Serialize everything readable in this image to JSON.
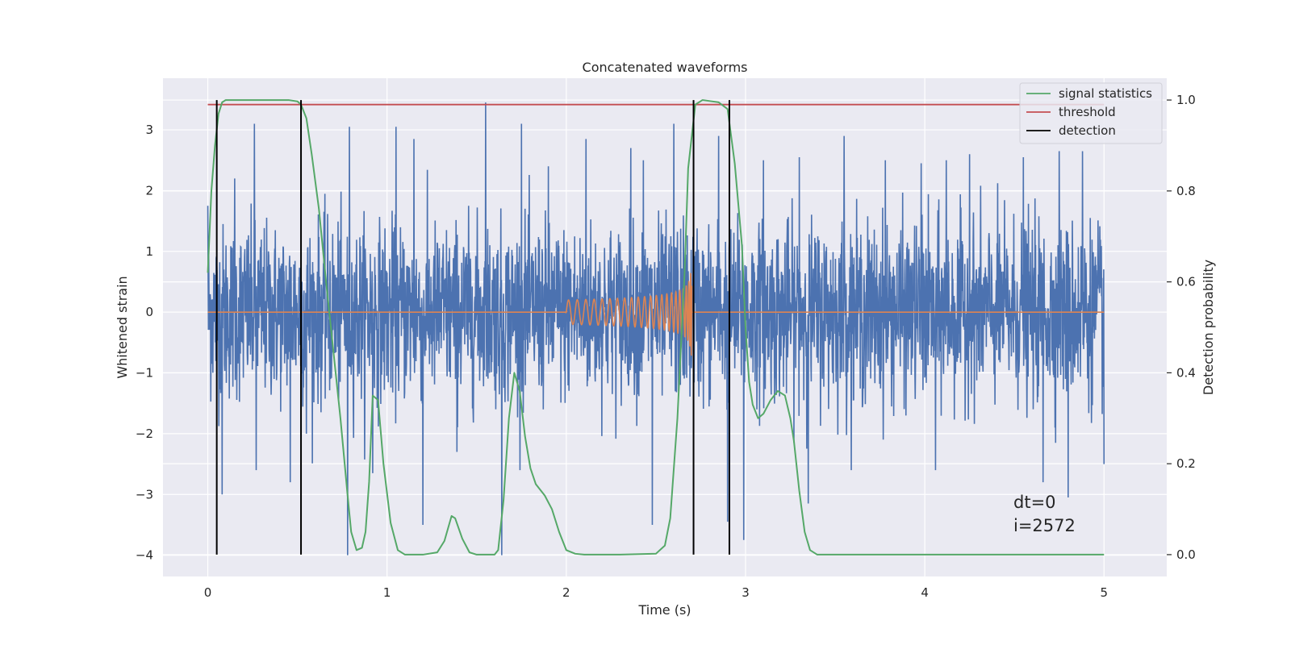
{
  "chart_data": {
    "type": "line",
    "title": "Concatenated waveforms",
    "xlabel": "Time (s)",
    "ylabel": "Whitened strain",
    "y2label": "Detection probability",
    "xlim": [
      -0.25,
      5.35
    ],
    "ylim": [
      -4.35,
      3.85
    ],
    "y2lim": [
      -0.048,
      1.048
    ],
    "xticks": [
      0,
      1,
      2,
      3,
      4,
      5
    ],
    "yticks": [
      -4,
      -3,
      -2,
      -1,
      0,
      1,
      2,
      3
    ],
    "y2ticks": [
      0.0,
      0.2,
      0.4,
      0.6,
      0.8,
      1.0
    ],
    "y2tick_labels": [
      "0.0",
      "0.2",
      "0.4",
      "0.6",
      "0.8",
      "1.0"
    ],
    "grid": true,
    "legend_position": "upper right",
    "colors": {
      "noise": "#4c72b0",
      "template": "#dd8452",
      "signal_statistics": "#55a868",
      "threshold": "#c44e52",
      "detection": "#000000",
      "plot_background": "#eaeaf2",
      "grid": "#ffffff"
    },
    "series": [
      {
        "name": "",
        "axis": "left",
        "description_kind": "whitened noise",
        "x_range": [
          0,
          5
        ],
        "amplitude_typical": 1.3,
        "peaks": [
          [
            0.0,
            1.75
          ],
          [
            0.08,
            -3.0
          ],
          [
            0.15,
            2.2
          ],
          [
            0.27,
            -2.6
          ],
          [
            0.26,
            3.1
          ],
          [
            0.46,
            2.6
          ],
          [
            0.46,
            -2.8
          ],
          [
            0.55,
            -2.0
          ],
          [
            0.78,
            -4.0
          ],
          [
            0.79,
            3.05
          ],
          [
            0.92,
            -2.65
          ],
          [
            1.05,
            3.05
          ],
          [
            1.15,
            2.85
          ],
          [
            1.2,
            -3.5
          ],
          [
            1.39,
            -2.3
          ],
          [
            1.55,
            3.45
          ],
          [
            1.64,
            -4.0
          ],
          [
            1.75,
            3.1
          ],
          [
            1.9,
            2.4
          ],
          [
            2.11,
            2.85
          ],
          [
            2.36,
            2.7
          ],
          [
            2.43,
            2.5
          ],
          [
            2.48,
            -3.5
          ],
          [
            2.6,
            3.1
          ],
          [
            2.85,
            2.9
          ],
          [
            2.9,
            -3.45
          ],
          [
            2.99,
            -3.75
          ],
          [
            3.1,
            2.5
          ],
          [
            3.3,
            2.55
          ],
          [
            3.35,
            -3.15
          ],
          [
            3.55,
            2.9
          ],
          [
            3.78,
            2.5
          ],
          [
            3.98,
            2.45
          ],
          [
            4.06,
            -2.6
          ],
          [
            4.12,
            2.5
          ],
          [
            4.25,
            2.6
          ],
          [
            4.55,
            2.55
          ],
          [
            4.66,
            -2.8
          ],
          [
            4.75,
            2.65
          ],
          [
            4.8,
            -3.05
          ],
          [
            4.88,
            2.65
          ],
          [
            5.0,
            2.1
          ],
          [
            5.0,
            -2.5
          ]
        ]
      },
      {
        "name": "",
        "axis": "left",
        "description_kind": "chirp template",
        "segments": [
          [
            0,
            2.0,
            0.0
          ],
          [
            2.0,
            2.7,
            "chirp"
          ],
          [
            2.7,
            5.0,
            0.0
          ]
        ],
        "chirp_amplitude_start": 0.2,
        "chirp_amplitude_peak": 1.3,
        "chirp_end": 2.7
      },
      {
        "name": "signal statistics",
        "axis": "right",
        "x": [
          0.0,
          0.02,
          0.04,
          0.06,
          0.08,
          0.1,
          0.15,
          0.3,
          0.45,
          0.5,
          0.52,
          0.55,
          0.58,
          0.62,
          0.66,
          0.7,
          0.74,
          0.78,
          0.8,
          0.83,
          0.86,
          0.88,
          0.9,
          0.92,
          0.95,
          0.98,
          1.02,
          1.06,
          1.1,
          1.2,
          1.28,
          1.32,
          1.36,
          1.38,
          1.42,
          1.46,
          1.5,
          1.6,
          1.62,
          1.65,
          1.68,
          1.71,
          1.74,
          1.77,
          1.8,
          1.83,
          1.88,
          1.92,
          1.96,
          2.0,
          2.05,
          2.1,
          2.3,
          2.5,
          2.55,
          2.58,
          2.62,
          2.66,
          2.68,
          2.72,
          2.76,
          2.85,
          2.9,
          2.94,
          2.98,
          3.0,
          3.02,
          3.04,
          3.07,
          3.1,
          3.14,
          3.18,
          3.22,
          3.25,
          3.27,
          3.3,
          3.33,
          3.36,
          3.4,
          3.6,
          4.0,
          4.5,
          5.0
        ],
        "values": [
          0.62,
          0.8,
          0.9,
          0.97,
          0.995,
          1.0,
          1.0,
          1.0,
          1.0,
          0.997,
          0.99,
          0.96,
          0.88,
          0.76,
          0.6,
          0.45,
          0.3,
          0.13,
          0.05,
          0.01,
          0.015,
          0.05,
          0.16,
          0.35,
          0.34,
          0.2,
          0.07,
          0.01,
          0.0,
          0.0,
          0.005,
          0.03,
          0.085,
          0.08,
          0.035,
          0.005,
          0.0,
          0.0,
          0.01,
          0.12,
          0.3,
          0.4,
          0.36,
          0.26,
          0.19,
          0.155,
          0.13,
          0.1,
          0.05,
          0.01,
          0.002,
          0.0,
          0.0,
          0.002,
          0.02,
          0.08,
          0.3,
          0.62,
          0.85,
          0.99,
          1.0,
          0.995,
          0.98,
          0.86,
          0.68,
          0.5,
          0.38,
          0.33,
          0.3,
          0.31,
          0.34,
          0.36,
          0.35,
          0.3,
          0.25,
          0.14,
          0.05,
          0.01,
          0.0,
          0.0,
          0.0,
          0.0,
          0.0
        ]
      },
      {
        "name": "threshold",
        "axis": "right",
        "x": [
          0,
          5
        ],
        "values": [
          0.99,
          0.99
        ]
      },
      {
        "name": "detection",
        "axis": "right",
        "type": "vlines",
        "x": [
          0.05,
          0.52,
          2.71,
          2.91
        ],
        "y_range": [
          0.0,
          1.0
        ]
      }
    ],
    "annotations": [
      {
        "text": "dt=0",
        "x": 4.5,
        "y": -3.25
      },
      {
        "text": "i=2572",
        "x": 4.5,
        "y": -3.6
      }
    ]
  }
}
